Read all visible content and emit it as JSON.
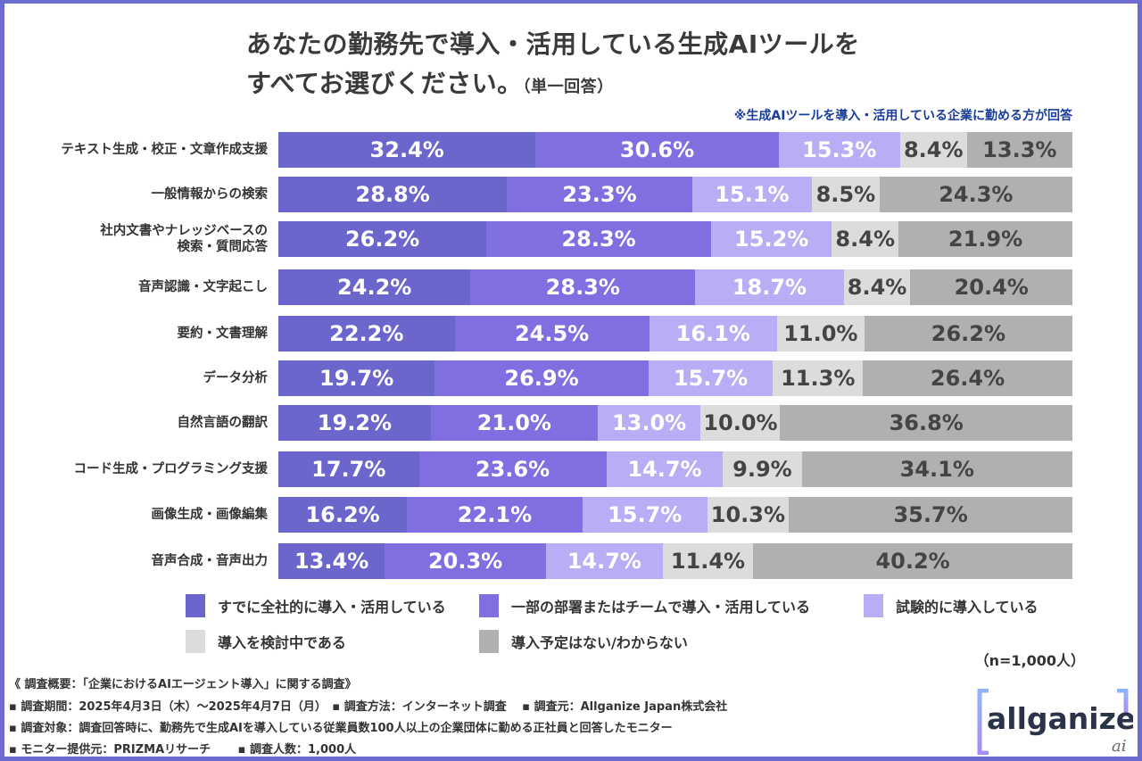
{
  "header": {
    "title_line1": "あなたの勤務先で導入・活用している生成AIツールを",
    "title_line2": "すべてお選びください。",
    "title_suffix": "（単一回答）",
    "note": "※生成AIツールを導入・活用している企業に勤める方が回答"
  },
  "chart_data": {
    "type": "bar",
    "orientation": "horizontal",
    "stacked": true,
    "unit": "%",
    "categories": [
      "テキスト生成・校正・文章作成支援",
      "一般情報からの検索",
      "社内文書やナレッジベースの検索・質問応答",
      "音声認識・文字起こし",
      "要約・文書理解",
      "データ分析",
      "自然言語の翻訳",
      "コード生成・プログラミング支援",
      "画像生成・画像編集",
      "音声合成・音声出力"
    ],
    "series": [
      {
        "name": "すでに全社的に導入・活用している",
        "color": "#6a66cc",
        "values": [
          32.4,
          28.8,
          26.2,
          24.2,
          22.2,
          19.7,
          19.2,
          17.7,
          16.2,
          13.4
        ]
      },
      {
        "name": "一部の部署またはチームで導入・活用している",
        "color": "#7f6fe0",
        "values": [
          30.6,
          23.3,
          28.3,
          28.3,
          24.5,
          26.9,
          21.0,
          23.6,
          22.1,
          20.3
        ]
      },
      {
        "name": "試験的に導入している",
        "color": "#b9aef5",
        "values": [
          15.3,
          15.1,
          15.2,
          18.7,
          16.1,
          15.7,
          13.0,
          14.7,
          15.7,
          14.7
        ]
      },
      {
        "name": "導入を検討中である",
        "color": "#dcdcdc",
        "values": [
          8.4,
          8.5,
          8.4,
          8.4,
          11.0,
          11.3,
          10.0,
          9.9,
          10.3,
          11.4
        ]
      },
      {
        "name": "導入予定はない/わからない",
        "color": "#b0b0b0",
        "values": [
          13.3,
          24.3,
          21.9,
          20.4,
          26.2,
          26.4,
          36.8,
          34.1,
          35.7,
          40.2
        ]
      }
    ],
    "legend": "bottom"
  },
  "n_label": "（n=1,000人）",
  "footer": {
    "line1": "《 調査概要：「企業におけるAIエージェント導入」に関する調査》",
    "line2": "▪ 調査期間：2025年4月3日（木）～2025年4月7日（月）　▪ 調査方法：インターネット調査　 ▪ 調査元：Allganize Japan株式会社",
    "line3": "▪ 調査対象：調査回答時に、勤務先で生成AIを導入している従業員数100人以上の企業団体に勤める正社員と回答したモニター",
    "line4": "▪ モニター提供元：PRIZMAリサーチ　　 ▪ 調査人数：1,000人"
  },
  "logo": {
    "text": "allganize",
    "mark": "ai"
  }
}
